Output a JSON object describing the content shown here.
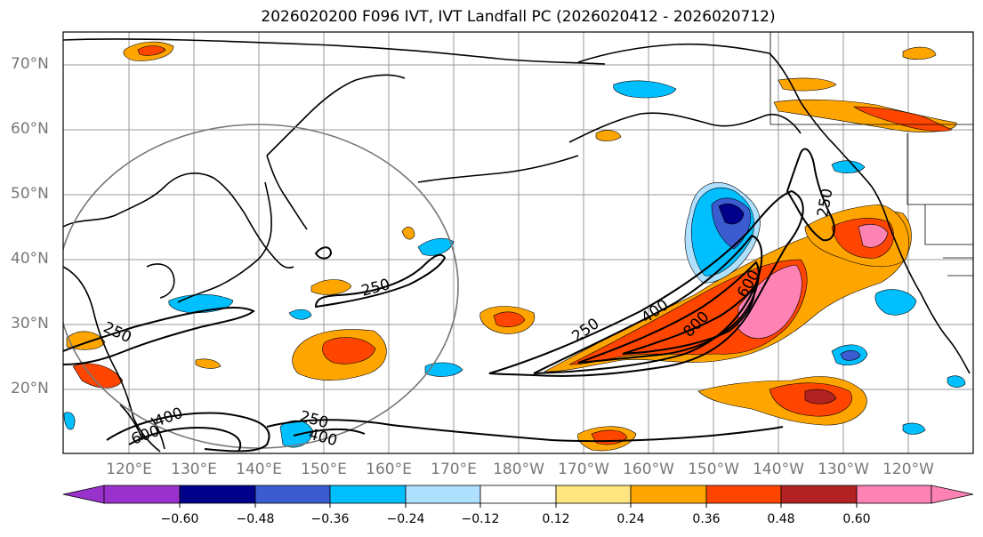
{
  "title": "2026020200 F096 IVT, IVT Landfall PC (2026020412 - 2026020712)",
  "lat_labels": [
    "70°N",
    "60°N",
    "50°N",
    "40°N",
    "30°N",
    "20°N"
  ],
  "lon_labels": [
    "120°E",
    "130°E",
    "140°E",
    "150°E",
    "160°E",
    "170°E",
    "180°W",
    "170°W",
    "160°W",
    "150°W",
    "140°W",
    "130°W",
    "120°W"
  ],
  "contour_labels": [
    "250",
    "250",
    "250",
    "250",
    "400",
    "400",
    "400",
    "600",
    "600",
    "800",
    "250"
  ],
  "colorbar": {
    "tick_labels": [
      "−0.60",
      "−0.48",
      "−0.36",
      "−0.24",
      "−0.12",
      "0.12",
      "0.24",
      "0.36",
      "0.48",
      "0.60"
    ],
    "colors": [
      "#9932cc",
      "#00008b",
      "#3b5bd1",
      "#00bfff",
      "#b0e0ff",
      "#ffffff",
      "#ffe680",
      "#ffa500",
      "#ff4500",
      "#b22222",
      "#ff82b4"
    ]
  }
}
